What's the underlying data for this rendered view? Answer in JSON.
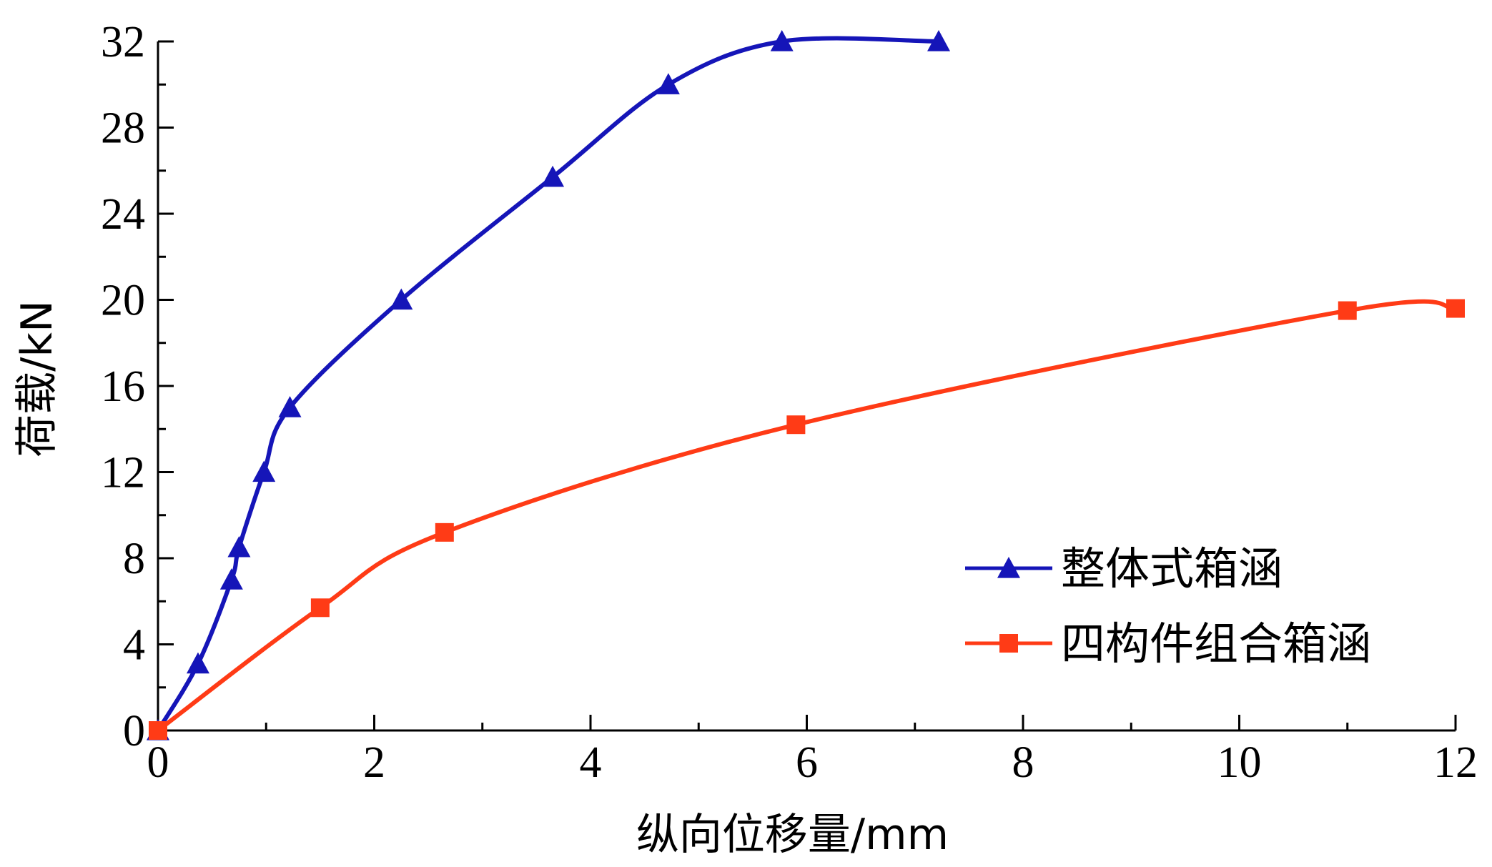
{
  "chart_data": {
    "type": "line",
    "xlabel": "纵向位移量/mm",
    "ylabel": "荷载/kN",
    "xlim": [
      0,
      12
    ],
    "ylim": [
      0,
      32
    ],
    "x_ticks": [
      "0",
      "2",
      "4",
      "6",
      "8",
      "10",
      "12"
    ],
    "y_ticks": [
      "0",
      "4",
      "8",
      "12",
      "16",
      "20",
      "24",
      "28",
      "32"
    ],
    "grid": false,
    "legend_position": "right",
    "series": [
      {
        "name": "整体式箱涵",
        "color": "#1515b8",
        "marker": "triangle",
        "points": [
          [
            0,
            0
          ],
          [
            0.37,
            3.1
          ],
          [
            0.68,
            7.0
          ],
          [
            0.75,
            8.5
          ],
          [
            0.98,
            12.0
          ],
          [
            1.22,
            15.0
          ],
          [
            2.25,
            20.0
          ],
          [
            3.65,
            25.7
          ],
          [
            4.72,
            30.0
          ],
          [
            5.77,
            32.0
          ],
          [
            7.22,
            32.0
          ]
        ]
      },
      {
        "name": "四构件组合箱涵",
        "color": "#ff3b16",
        "marker": "square",
        "points": [
          [
            0,
            0
          ],
          [
            1.5,
            5.7
          ],
          [
            2.65,
            9.2
          ],
          [
            5.9,
            14.2
          ],
          [
            11.0,
            19.5
          ],
          [
            12.0,
            19.6
          ]
        ]
      }
    ]
  }
}
